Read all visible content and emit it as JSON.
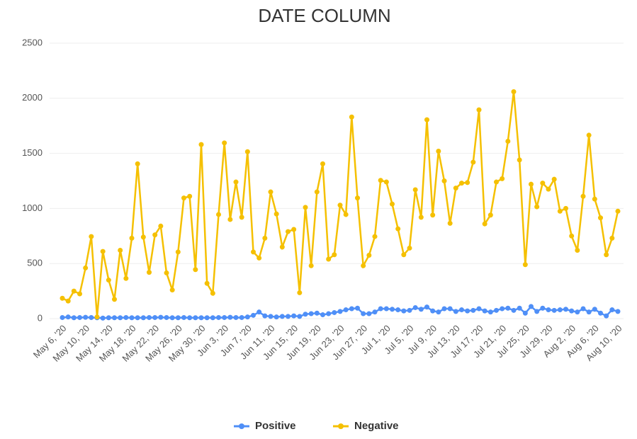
{
  "chart_data": {
    "type": "line",
    "title": "DATE COLUMN",
    "categories": [
      "May 6, '20",
      null,
      null,
      null,
      "May 10, '20",
      null,
      null,
      null,
      "May 14, '20",
      null,
      null,
      null,
      "May 18, '20",
      null,
      null,
      null,
      "May 22, '20",
      null,
      null,
      null,
      "May 26, '20",
      null,
      null,
      null,
      "May 30, '20",
      null,
      null,
      null,
      "Jun 3, '20",
      null,
      null,
      null,
      "Jun 7, '20",
      null,
      null,
      null,
      "Jun 11, '20",
      null,
      null,
      null,
      "Jun 15, '20",
      null,
      null,
      null,
      "Jun 19, '20",
      null,
      null,
      null,
      "Jun 23, '20",
      null,
      null,
      null,
      "Jun 27, '20",
      null,
      null,
      null,
      "Jul 1, '20",
      null,
      null,
      null,
      "Jul 5, '20",
      null,
      null,
      null,
      "Jul 9, '20",
      null,
      null,
      null,
      "Jul 13, '20",
      null,
      null,
      null,
      "Jul 17, '20",
      null,
      null,
      null,
      "Jul 21, '20",
      null,
      null,
      null,
      "Jul 25, '20",
      null,
      null,
      null,
      "Jul 29, '20",
      null,
      null,
      null,
      "Aug 2, '20",
      null,
      null,
      null,
      "Aug 6, '20",
      null,
      null,
      null,
      "Aug 10, '20"
    ],
    "series": [
      {
        "name": "Positive",
        "color": "#4f8ff7",
        "values": [
          10,
          15,
          8,
          10,
          12,
          10,
          8,
          5,
          8,
          8,
          8,
          10,
          8,
          8,
          8,
          10,
          10,
          12,
          10,
          8,
          8,
          10,
          8,
          8,
          8,
          8,
          8,
          10,
          10,
          12,
          10,
          10,
          15,
          30,
          60,
          25,
          20,
          15,
          20,
          20,
          25,
          20,
          40,
          45,
          50,
          35,
          45,
          55,
          65,
          80,
          90,
          95,
          45,
          45,
          60,
          90,
          90,
          85,
          80,
          70,
          75,
          100,
          85,
          105,
          70,
          60,
          90,
          90,
          65,
          80,
          70,
          75,
          90,
          70,
          60,
          75,
          90,
          95,
          75,
          95,
          50,
          110,
          65,
          95,
          80,
          75,
          80,
          85,
          70,
          60,
          90,
          60,
          85,
          50,
          25,
          80,
          65
        ]
      },
      {
        "name": "Negative",
        "color": "#f5c000",
        "values": [
          185,
          160,
          250,
          225,
          460,
          745,
          15,
          610,
          350,
          175,
          620,
          365,
          730,
          1405,
          740,
          420,
          760,
          840,
          415,
          260,
          605,
          1095,
          1110,
          445,
          1580,
          320,
          230,
          945,
          1595,
          900,
          1240,
          920,
          1515,
          605,
          550,
          730,
          1150,
          950,
          650,
          790,
          810,
          235,
          1010,
          480,
          1150,
          1405,
          540,
          580,
          1030,
          945,
          1830,
          1095,
          480,
          575,
          745,
          1255,
          1240,
          1040,
          815,
          580,
          640,
          1170,
          920,
          1805,
          940,
          1520,
          1250,
          865,
          1185,
          1230,
          1235,
          1420,
          1895,
          860,
          940,
          1240,
          1270,
          1610,
          2060,
          1440,
          490,
          1220,
          1015,
          1230,
          1175,
          1265,
          975,
          1000,
          750,
          620,
          1110,
          1665,
          1085,
          915,
          580,
          730,
          975
        ]
      }
    ],
    "ylim": [
      0,
      2500
    ],
    "yticks": [
      0,
      500,
      1000,
      1500,
      2000,
      2500
    ],
    "grid": true,
    "legend": "bottom"
  }
}
